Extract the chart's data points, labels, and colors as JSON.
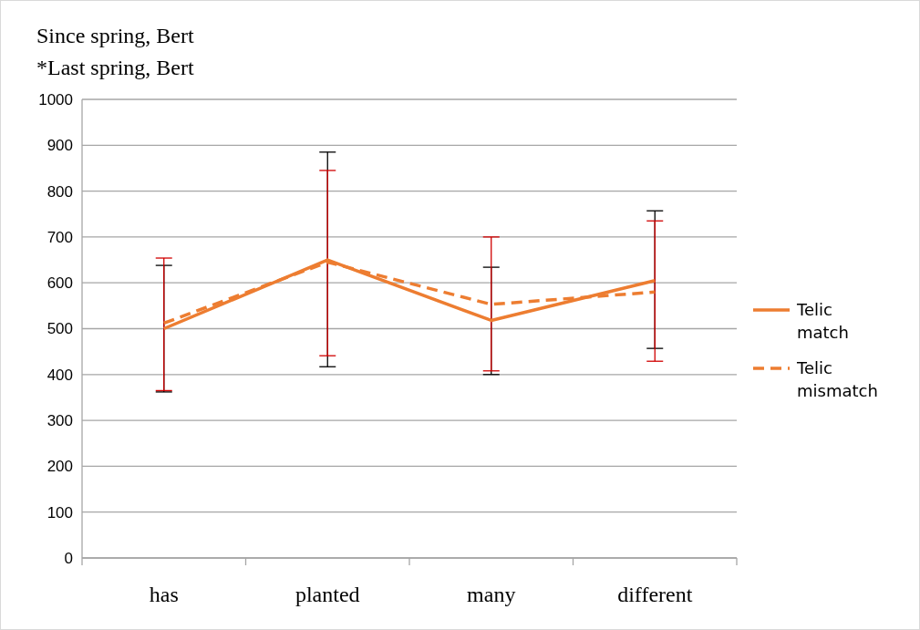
{
  "chart_data": {
    "type": "line",
    "title": "Since spring, Bert",
    "subtitle": "*Last spring, Bert",
    "categories": [
      "has",
      "planted",
      "many",
      "different"
    ],
    "series": [
      {
        "name": "Telic match",
        "color": "#ed7d31",
        "line_style": "solid",
        "values": [
          500,
          650,
          518,
          605
        ],
        "errors": [
          [
            362,
            638
          ],
          [
            417,
            885
          ],
          [
            400,
            634
          ],
          [
            457,
            757
          ]
        ]
      },
      {
        "name": "Telic mismatch",
        "color": "#ed7d31",
        "line_style": "dashed",
        "values": [
          512,
          645,
          553,
          580
        ],
        "errors": [
          [
            365,
            654
          ],
          [
            441,
            845
          ],
          [
            408,
            700
          ],
          [
            429,
            735
          ]
        ]
      }
    ],
    "ylim": [
      0,
      1000
    ],
    "yticks": [
      0,
      100,
      200,
      300,
      400,
      500,
      600,
      700,
      800,
      900,
      1000
    ],
    "grid": "y",
    "legend": "right",
    "marker": "none"
  }
}
